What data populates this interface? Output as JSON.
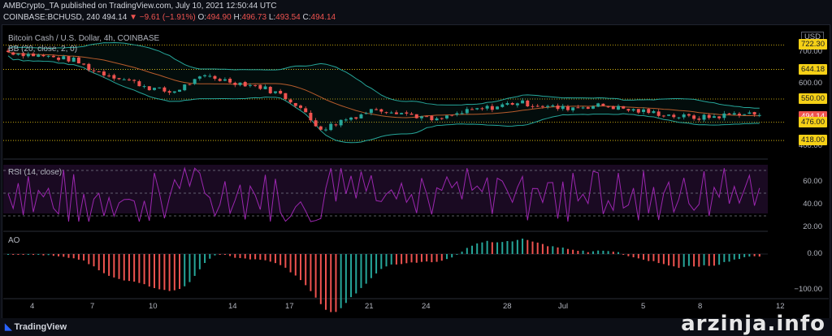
{
  "header": {
    "line1": "AMBCrypto_TA published on TradingView.com, July 10, 2021 12:50:44 UTC",
    "symbol": "COINBASE:BCHUSD, 240",
    "last": "494.14",
    "change": "−9.61 (−1.91%)",
    "o_label": "O:",
    "o_val": "494.90",
    "h_label": "H:",
    "h_val": "496.73",
    "l_label": "L:",
    "l_val": "493.54",
    "c_label": "C:",
    "c_val": "494.14"
  },
  "panes": {
    "price_title": "Bitcoin Cash / U.S. Dollar, 4h, COINBASE",
    "bb_title": "BB (20, close, 2, 0)",
    "rsi_title": "RSI (14, close)",
    "ao_title": "AO"
  },
  "axis": {
    "currency": "USD",
    "price_ticks": [
      "700.00",
      "600.00",
      "400.00"
    ],
    "price_badges": [
      {
        "label": "722.30",
        "color": "#f5d016"
      },
      {
        "label": "644.18",
        "color": "#f5d016"
      },
      {
        "label": "550.00",
        "color": "#f5d016"
      },
      {
        "label": "494.14",
        "color": "#ef5350"
      },
      {
        "label": "476.00",
        "color": "#f5d016"
      },
      {
        "label": "418.00",
        "color": "#f5d016"
      }
    ],
    "rsi_ticks": [
      "60.00",
      "40.00",
      "20.00"
    ],
    "ao_ticks": [
      "0.00",
      "−100.00"
    ],
    "x_labels": [
      "4",
      "7",
      "10",
      "14",
      "17",
      "21",
      "24",
      "28",
      "Jul",
      "5",
      "8",
      "12"
    ]
  },
  "footer": {
    "brand": "TradingView",
    "watermark": "arzinja.info"
  },
  "colors": {
    "up": "#26a69a",
    "down": "#ef5350",
    "bb": "#26a69a",
    "basis": "#b85c2c",
    "rsi": "#9c27b0",
    "level": "#f5d016"
  },
  "chart_data": {
    "type": "candlestick",
    "price_levels": [
      722.3,
      644.18,
      550.0,
      476.0,
      418.0
    ],
    "last_price": 494.14,
    "rsi_range": [
      20,
      75
    ],
    "ao_range": [
      -110,
      40
    ]
  }
}
